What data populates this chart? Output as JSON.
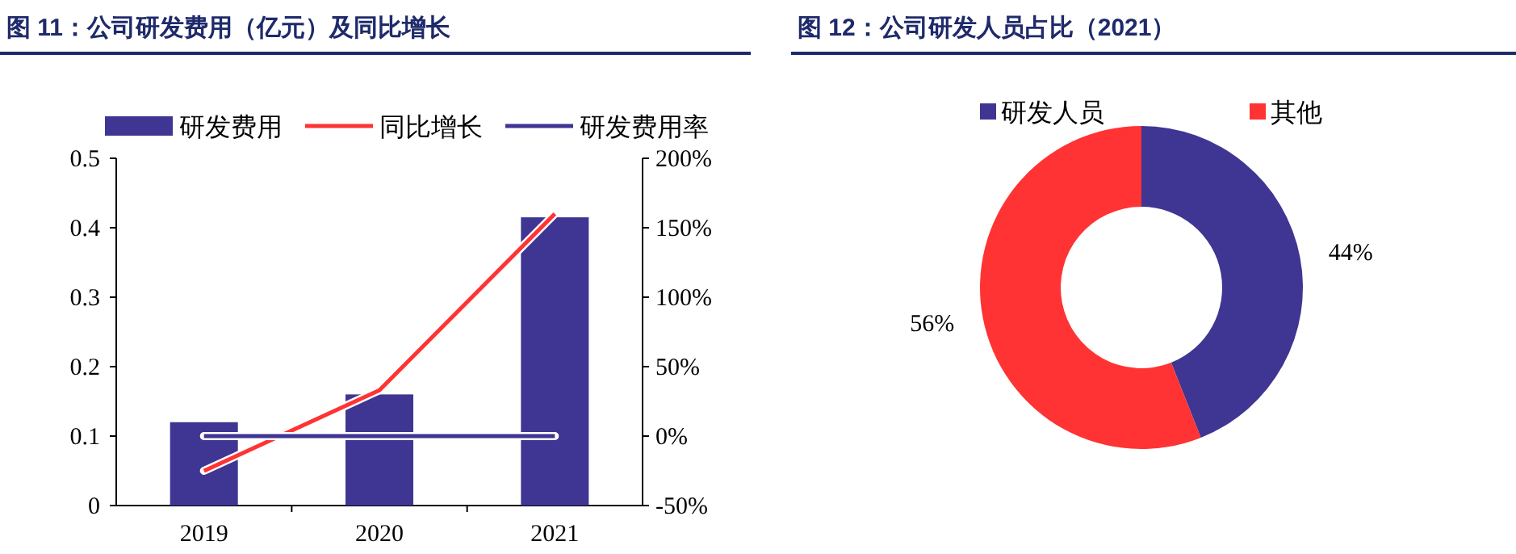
{
  "chart_data": [
    {
      "type": "bar",
      "title": "图 11：公司研发费用（亿元）及同比增长",
      "categories": [
        "2019",
        "2020",
        "2021"
      ],
      "series": [
        {
          "name": "研发费用",
          "type": "bar",
          "color": "#3f3592",
          "values": [
            0.12,
            0.16,
            0.415
          ]
        },
        {
          "name": "同比增长",
          "type": "line",
          "color": "#ff3333",
          "axis": "y2",
          "values": [
            -25,
            33,
            160
          ]
        },
        {
          "name": "研发费用率",
          "type": "line",
          "color": "#3f3592",
          "axis": "y2",
          "values": [
            0,
            0,
            0
          ]
        }
      ],
      "ylim": [
        0,
        0.5
      ],
      "yticks": [
        0,
        0.1,
        0.2,
        0.3,
        0.4,
        0.5
      ],
      "y2lim": [
        -50,
        200
      ],
      "y2ticks": [
        {
          "value": -50,
          "label": "-50%"
        },
        {
          "value": 0,
          "label": "0%"
        },
        {
          "value": 50,
          "label": "50%"
        },
        {
          "value": 100,
          "label": "100%"
        },
        {
          "value": 150,
          "label": "150%"
        },
        {
          "value": 200,
          "label": "200%"
        }
      ],
      "legend": "top",
      "grid": false
    },
    {
      "type": "donut",
      "title": "图 12：公司研发人员占比（2021）",
      "categories": [
        "研发人员",
        "其他"
      ],
      "values": [
        44,
        56
      ],
      "colors": [
        "#3f3592",
        "#ff3333"
      ],
      "value_labels": [
        "44%",
        "56%"
      ],
      "legend": "top"
    }
  ]
}
